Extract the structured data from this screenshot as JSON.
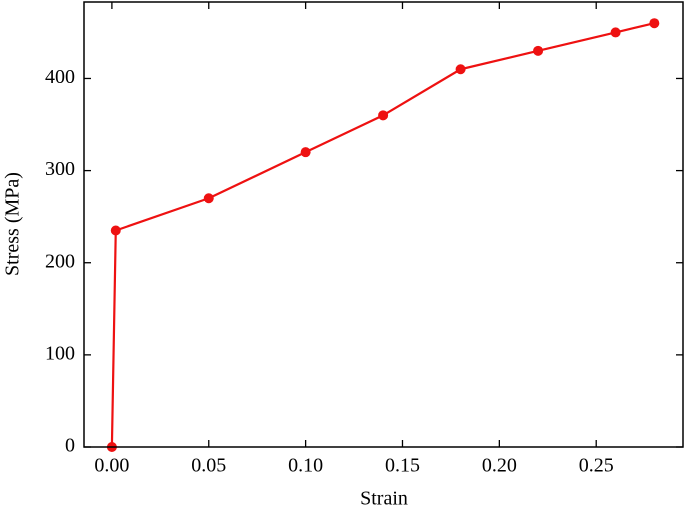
{
  "chart_data": {
    "type": "line",
    "x_label": "Strain",
    "y_label": "Stress (MPa)",
    "x": [
      0,
      0.002,
      0.05,
      0.1,
      0.14,
      0.18,
      0.22,
      0.26,
      0.28
    ],
    "series": [
      {
        "color": "#ee1111",
        "values": [
          0,
          235,
          270,
          320,
          360,
          410,
          430,
          450,
          460
        ]
      }
    ],
    "xlim": [
      -0.0144,
      0.2948
    ],
    "ylim": [
      0,
      483
    ],
    "xticks": [
      {
        "value": 0,
        "label": "0.00"
      },
      {
        "value": 0.05,
        "label": "0.05"
      },
      {
        "value": 0.1,
        "label": "0.10"
      },
      {
        "value": 0.15,
        "label": "0.15"
      },
      {
        "value": 0.2,
        "label": "0.20"
      },
      {
        "value": 0.25,
        "label": "0.25"
      }
    ],
    "yticks": [
      0,
      100,
      200,
      300,
      400
    ],
    "markers": true,
    "grid": false
  }
}
